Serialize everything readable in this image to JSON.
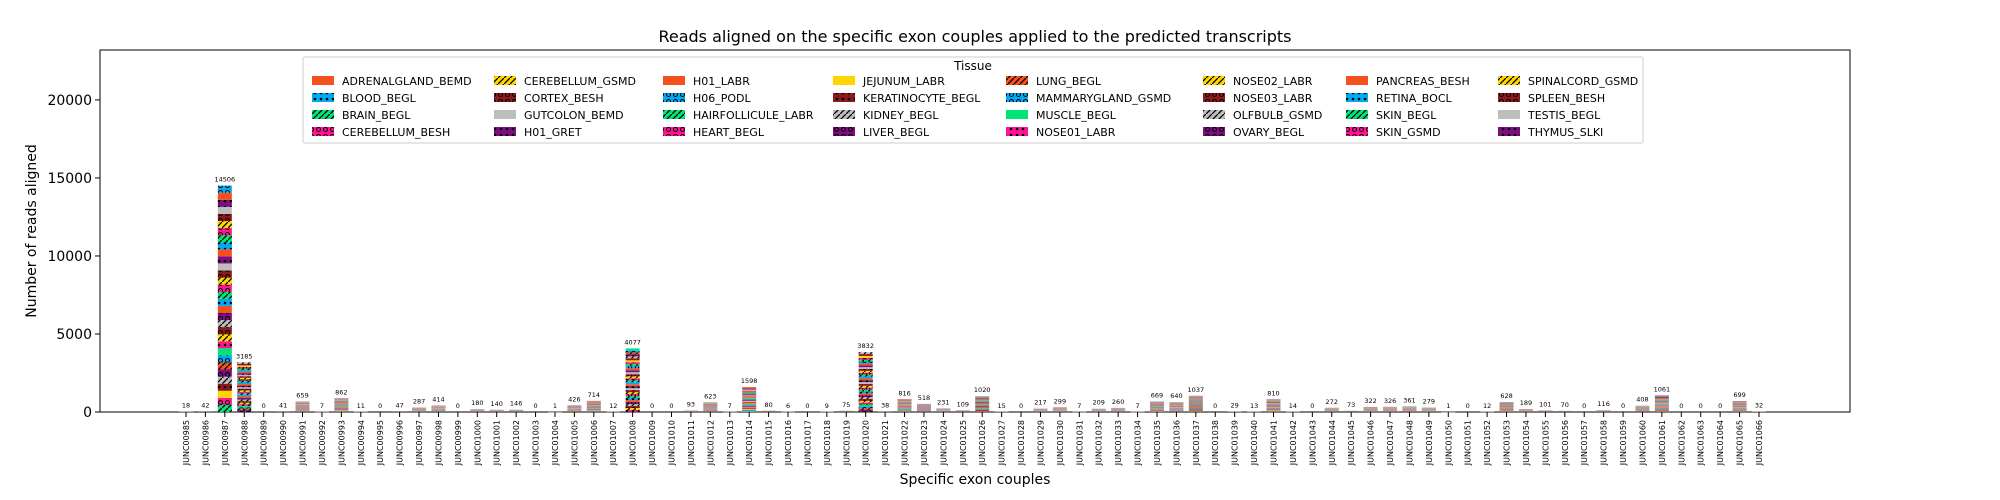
{
  "chart_data": {
    "type": "bar",
    "stacked": true,
    "title": "Reads aligned on the specific exon couples applied to the predicted transcripts",
    "xlabel": "Specific exon couples",
    "ylabel": "Number of reads aligned",
    "ylim": [
      0,
      23200
    ],
    "yticks": [
      0,
      5000,
      10000,
      15000,
      20000
    ],
    "grid": false,
    "legend": {
      "title": "Tissue",
      "placement": "top-center",
      "columns": 8
    },
    "categories": [
      "JUNC00985",
      "JUNC00986",
      "JUNC00987",
      "JUNC00988",
      "JUNC00989",
      "JUNC00990",
      "JUNC00991",
      "JUNC00992",
      "JUNC00993",
      "JUNC00994",
      "JUNC00995",
      "JUNC00996",
      "JUNC00997",
      "JUNC00998",
      "JUNC00999",
      "JUNC01000",
      "JUNC01001",
      "JUNC01002",
      "JUNC01003",
      "JUNC01004",
      "JUNC01005",
      "JUNC01006",
      "JUNC01007",
      "JUNC01008",
      "JUNC01009",
      "JUNC01010",
      "JUNC01011",
      "JUNC01012",
      "JUNC01013",
      "JUNC01014",
      "JUNC01015",
      "JUNC01016",
      "JUNC01017",
      "JUNC01018",
      "JUNC01019",
      "JUNC01020",
      "JUNC01021",
      "JUNC01022",
      "JUNC01023",
      "JUNC01024",
      "JUNC01025",
      "JUNC01026",
      "JUNC01027",
      "JUNC01028",
      "JUNC01029",
      "JUNC01030",
      "JUNC01031",
      "JUNC01032",
      "JUNC01033",
      "JUNC01034",
      "JUNC01035",
      "JUNC01036",
      "JUNC01037",
      "JUNC01038",
      "JUNC01039",
      "JUNC01040",
      "JUNC01041",
      "JUNC01042",
      "JUNC01043",
      "JUNC01044",
      "JUNC01045",
      "JUNC01046",
      "JUNC01047",
      "JUNC01048",
      "JUNC01049",
      "JUNC01050",
      "JUNC01051",
      "JUNC01052",
      "JUNC01053",
      "JUNC01054",
      "JUNC01055",
      "JUNC01056",
      "JUNC01057",
      "JUNC01058",
      "JUNC01059",
      "JUNC01060",
      "JUNC01061",
      "JUNC01062",
      "JUNC01063",
      "JUNC01064",
      "JUNC01065",
      "JUNC01066"
    ],
    "totals": [
      18,
      42,
      14506,
      3185,
      0,
      41,
      659,
      7,
      862,
      11,
      0,
      47,
      287,
      414,
      0,
      180,
      140,
      146,
      0,
      1,
      426,
      714,
      12,
      4077,
      0,
      0,
      93,
      623,
      7,
      1598,
      80,
      6,
      0,
      9,
      75,
      3832,
      38,
      816,
      518,
      231,
      109,
      1020,
      15,
      0,
      217,
      299,
      7,
      209,
      260,
      7,
      669,
      640,
      1037,
      0,
      29,
      13,
      810,
      14,
      0,
      272,
      73,
      322,
      326,
      361,
      279,
      1,
      0,
      12,
      628,
      189,
      101,
      70,
      0,
      116,
      0,
      408,
      1061,
      0,
      0,
      0,
      699,
      32
    ],
    "series": [
      {
        "name": "ADRENALGLAND_BEMD",
        "color": "#f4511e",
        "hatch": ""
      },
      {
        "name": "BLOOD_BEGL",
        "color": "#03a9f4",
        "hatch": "*"
      },
      {
        "name": "BRAIN_BEGL",
        "color": "#00e676",
        "hatch": "/"
      },
      {
        "name": "CEREBELLUM_BESH",
        "color": "#ff1493",
        "hatch": "o"
      },
      {
        "name": "CEREBELLUM_GSMD",
        "color": "#ffd600",
        "hatch": "/"
      },
      {
        "name": "CORTEX_BESH",
        "color": "#8b1a1a",
        "hatch": "o"
      },
      {
        "name": "GUTCOLON_BEMD",
        "color": "#bdbdbd",
        "hatch": ""
      },
      {
        "name": "H01_GRET",
        "color": "#7b0f7e",
        "hatch": "*"
      },
      {
        "name": "H01_LABR",
        "color": "#f4511e",
        "hatch": ""
      },
      {
        "name": "H06_PODL",
        "color": "#03a9f4",
        "hatch": "o"
      },
      {
        "name": "HAIRFOLLICULE_LABR",
        "color": "#00e676",
        "hatch": "/"
      },
      {
        "name": "HEART_BEGL",
        "color": "#ff1493",
        "hatch": "o"
      },
      {
        "name": "JEJUNUM_LABR",
        "color": "#ffd600",
        "hatch": ""
      },
      {
        "name": "KERATINOCYTE_BEGL",
        "color": "#8b1a1a",
        "hatch": "*"
      },
      {
        "name": "KIDNEY_BEGL",
        "color": "#bdbdbd",
        "hatch": "/"
      },
      {
        "name": "LIVER_BEGL",
        "color": "#7b0f7e",
        "hatch": "o"
      },
      {
        "name": "LUNG_BEGL",
        "color": "#f4511e",
        "hatch": "/"
      },
      {
        "name": "MAMMARYGLAND_GSMD",
        "color": "#03a9f4",
        "hatch": "o"
      },
      {
        "name": "MUSCLE_BEGL",
        "color": "#00e676",
        "hatch": ""
      },
      {
        "name": "NOSE01_LABR",
        "color": "#ff1493",
        "hatch": "*"
      },
      {
        "name": "NOSE02_LABR",
        "color": "#ffd600",
        "hatch": "/"
      },
      {
        "name": "NOSE03_LABR",
        "color": "#8b1a1a",
        "hatch": "o"
      },
      {
        "name": "OLFBULB_GSMD",
        "color": "#bdbdbd",
        "hatch": "/"
      },
      {
        "name": "OVARY_BEGL",
        "color": "#7b0f7e",
        "hatch": "o"
      },
      {
        "name": "PANCREAS_BESH",
        "color": "#f4511e",
        "hatch": ""
      },
      {
        "name": "RETINA_BOCL",
        "color": "#03a9f4",
        "hatch": "*"
      },
      {
        "name": "SKIN_BEGL",
        "color": "#00e676",
        "hatch": "/"
      },
      {
        "name": "SKIN_GSMD",
        "color": "#ff1493",
        "hatch": "o"
      },
      {
        "name": "SPINALCORD_GSMD",
        "color": "#ffd600",
        "hatch": "/"
      },
      {
        "name": "SPLEEN_BESH",
        "color": "#8b1a1a",
        "hatch": "o"
      },
      {
        "name": "TESTIS_BEGL",
        "color": "#bdbdbd",
        "hatch": ""
      },
      {
        "name": "THYMUS_SLKI",
        "color": "#7b0f7e",
        "hatch": "*"
      }
    ]
  }
}
